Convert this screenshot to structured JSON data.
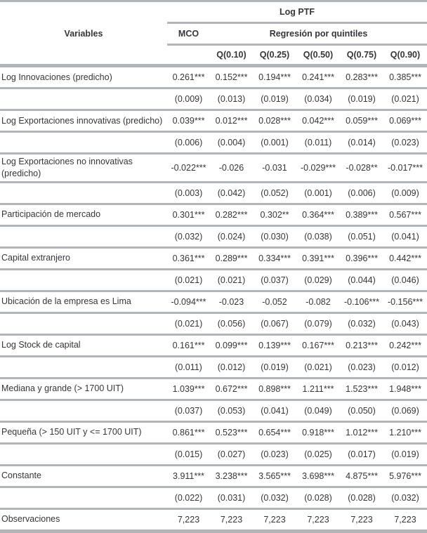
{
  "colors": {
    "line": "#b2b5b7",
    "text": "#35363a",
    "background": "#ffffff"
  },
  "table": {
    "title": "Log PTF",
    "variables_header": "Variables",
    "mco_header": "MCO",
    "quantiles_header": "Regresión por quintiles",
    "quantile_labels": [
      "Q(0.10)",
      "Q(0.25)",
      "Q(0.50)",
      "Q(0.75)",
      "Q(0.90)"
    ],
    "rows": [
      {
        "label": "Log Innovaciones (predicho)",
        "coefs": [
          "0.261***",
          "0.152***",
          "0.194***",
          "0.241***",
          "0.283***",
          "0.385***"
        ],
        "se": [
          "(0.009)",
          "(0.013)",
          "(0.019)",
          "(0.034)",
          "(0.019)",
          "(0.021)"
        ]
      },
      {
        "label": "Log Exportaciones innovativas (predicho)",
        "coefs": [
          "0.039***",
          "0.012***",
          "0.028***",
          "0.042***",
          "0.059***",
          "0.069***"
        ],
        "se": [
          "(0.006)",
          "(0.004)",
          "(0.001)",
          "(0.011)",
          "(0.014)",
          "(0.023)"
        ]
      },
      {
        "label": "Log Exportaciones no innovativas (predicho)",
        "coefs": [
          "-0.022***",
          "-0.026",
          "-0.031",
          "-0.029***",
          "-0.028**",
          "-0.017***"
        ],
        "se": [
          "(0.003)",
          "(0.042)",
          "(0.052)",
          "(0.001)",
          "(0.006)",
          "(0.009)"
        ]
      },
      {
        "label": "Participación de mercado",
        "coefs": [
          "0.301***",
          "0.282***",
          "0.302**",
          "0.364***",
          "0.389***",
          "0.567***"
        ],
        "se": [
          "(0.032)",
          "(0.024)",
          "(0.030)",
          "(0.038)",
          "(0.051)",
          "(0.041)"
        ]
      },
      {
        "label": "Capital extranjero",
        "coefs": [
          "0.361***",
          "0.289***",
          "0.334***",
          "0.391***",
          "0.396***",
          "0.442***"
        ],
        "se": [
          "(0.021)",
          "(0.021)",
          "(0.037)",
          "(0.029)",
          "(0.044)",
          "(0.046)"
        ]
      },
      {
        "label": "Ubicación de la empresa es Lima",
        "coefs": [
          "-0.094***",
          "-0.023",
          "-0.052",
          "-0.082",
          "-0.106***",
          "-0.156***"
        ],
        "se": [
          "(0.021)",
          "(0.056)",
          "(0.067)",
          "(0.079)",
          "(0.032)",
          "(0.043)"
        ]
      },
      {
        "label": "Log Stock de capital",
        "coefs": [
          "0.161***",
          "0.099***",
          "0.139***",
          "0.167***",
          "0.213***",
          "0.242***"
        ],
        "se": [
          "(0.011)",
          "(0.012)",
          "(0.019)",
          "(0.021)",
          "(0.023)",
          "(0.012)"
        ]
      },
      {
        "label": "Mediana y grande (> 1700 UIT)",
        "coefs": [
          "1.039***",
          "0.672***",
          "0.898***",
          "1.211***",
          "1.523***",
          "1.948***"
        ],
        "se": [
          "(0.037)",
          "(0.053)",
          "(0.041)",
          "(0.049)",
          "(0.050)",
          "(0.069)"
        ]
      },
      {
        "label": "Pequeña (> 150 UIT y <= 1700 UIT)",
        "coefs": [
          "0.861***",
          "0.523***",
          "0.654***",
          "0.918***",
          "1.012***",
          "1.210***"
        ],
        "se": [
          "(0.015)",
          "(0.027)",
          "(0.023)",
          "(0.025)",
          "(0.017)",
          "(0.019)"
        ]
      },
      {
        "label": "Constante",
        "coefs": [
          "3.911***",
          "3.238***",
          "3.565***",
          "3.698***",
          "4.875***",
          "5.976***"
        ],
        "se": [
          "(0.022)",
          "(0.031)",
          "(0.032)",
          "(0.028)",
          "(0.028)",
          "(0.032)"
        ]
      }
    ],
    "observations": {
      "label": "Observaciones",
      "values": [
        "7,223",
        "7,223",
        "7,223",
        "7,223",
        "7,223",
        "7,223"
      ]
    }
  }
}
